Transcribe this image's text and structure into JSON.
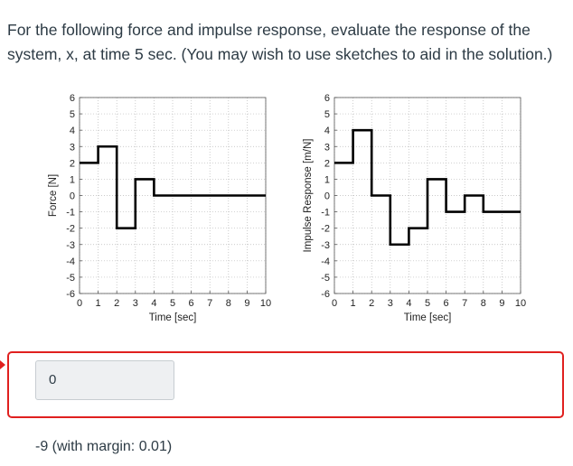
{
  "question": {
    "text": "For the following force and impulse response, evaluate the response of the system, x, at time 5 sec. (You may wish to use sketches to aid in the solution.)"
  },
  "answer": {
    "entered_value": "0",
    "correct_text": "-9 (with margin: 0.01)"
  },
  "chart_data": [
    {
      "type": "line",
      "step": true,
      "xlabel": "Time [sec]",
      "ylabel": "Force [N]",
      "xlim": [
        0,
        10
      ],
      "ylim": [
        -6,
        6
      ],
      "xticks": [
        0,
        1,
        2,
        3,
        4,
        5,
        6,
        7,
        8,
        9,
        10
      ],
      "yticks": [
        -6,
        -5,
        -4,
        -3,
        -2,
        -1,
        0,
        1,
        2,
        3,
        4,
        5,
        6
      ],
      "grid": true,
      "x": [
        0,
        1,
        1,
        2,
        2,
        3,
        3,
        4,
        4,
        10
      ],
      "y": [
        2,
        2,
        3,
        3,
        -2,
        -2,
        1,
        1,
        0,
        0
      ]
    },
    {
      "type": "line",
      "step": true,
      "xlabel": "Time [sec]",
      "ylabel": "Impulse Response [m/N]",
      "xlim": [
        0,
        10
      ],
      "ylim": [
        -6,
        6
      ],
      "xticks": [
        0,
        1,
        2,
        3,
        4,
        5,
        6,
        7,
        8,
        9,
        10
      ],
      "yticks": [
        -6,
        -5,
        -4,
        -3,
        -2,
        -1,
        0,
        1,
        2,
        3,
        4,
        5,
        6
      ],
      "grid": true,
      "x": [
        0,
        1,
        1,
        2,
        2,
        3,
        3,
        4,
        4,
        5,
        5,
        6,
        6,
        7,
        7,
        8,
        8,
        9,
        9,
        10
      ],
      "y": [
        2,
        2,
        4,
        4,
        0,
        0,
        -3,
        -3,
        -2,
        -2,
        1,
        1,
        -1,
        -1,
        0,
        0,
        -1,
        -1,
        -1,
        -1
      ]
    }
  ],
  "colors": {
    "accent_border": "#e0201f",
    "input_bg": "#eef0f2"
  }
}
